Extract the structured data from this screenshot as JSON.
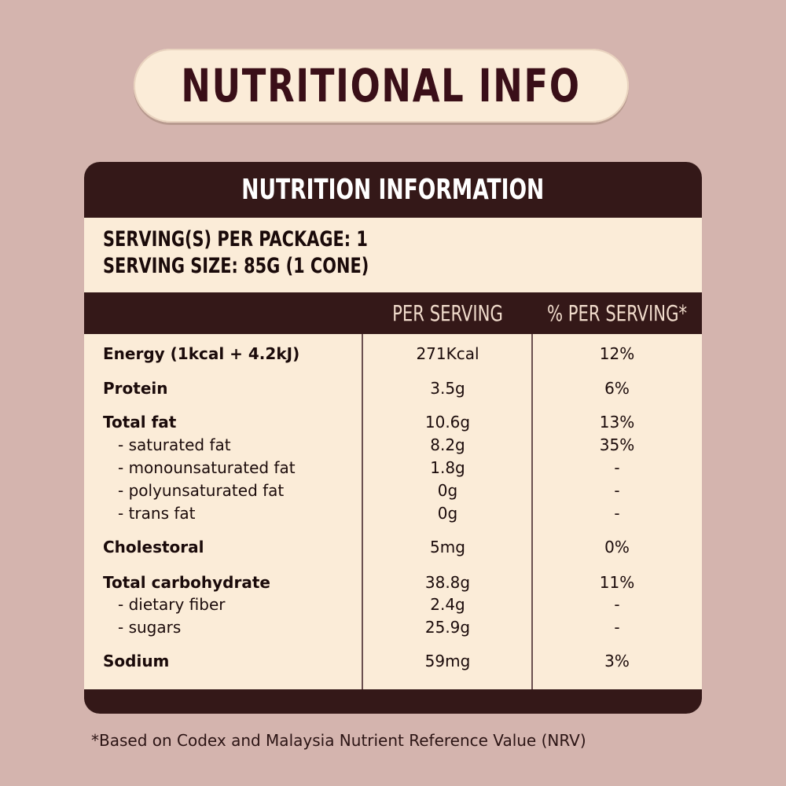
{
  "header": {
    "title": "NUTRITIONAL INFO"
  },
  "panel": {
    "title": "NUTRITION INFORMATION",
    "servings_per_package": "SERVING(S) PER PACKAGE: 1",
    "serving_size": "SERVING SIZE: 85G (1 CONE)",
    "columns": {
      "per_serving": "PER SERVING",
      "percent_per_serving": "% PER SERVING*"
    },
    "rows": [
      {
        "name": "Energy (1kcal + 4.2kJ)",
        "per": "271Kcal",
        "pct": "12%"
      },
      {
        "name": "Protein",
        "per": "3.5g",
        "pct": "6%"
      },
      {
        "name": "Total fat",
        "per": "10.6g",
        "pct": "13%"
      },
      {
        "name": "- saturated fat",
        "per": "8.2g",
        "pct": "35%"
      },
      {
        "name": "- monounsaturated fat",
        "per": "1.8g",
        "pct": "-"
      },
      {
        "name": "- polyunsaturated fat",
        "per": "0g",
        "pct": "-"
      },
      {
        "name": "- trans fat",
        "per": "0g",
        "pct": "-"
      },
      {
        "name": "Cholestoral",
        "per": "5mg",
        "pct": "0%"
      },
      {
        "name": "Total carbohydrate",
        "per": "38.8g",
        "pct": "11%"
      },
      {
        "name": "- dietary fiber",
        "per": "2.4g",
        "pct": "-"
      },
      {
        "name": "- sugars",
        "per": "25.9g",
        "pct": "-"
      },
      {
        "name": "Sodium",
        "per": "59mg",
        "pct": "3%"
      }
    ]
  },
  "footnote": "*Based on Codex and Malaysia Nutrient Reference Value (NRV)"
}
